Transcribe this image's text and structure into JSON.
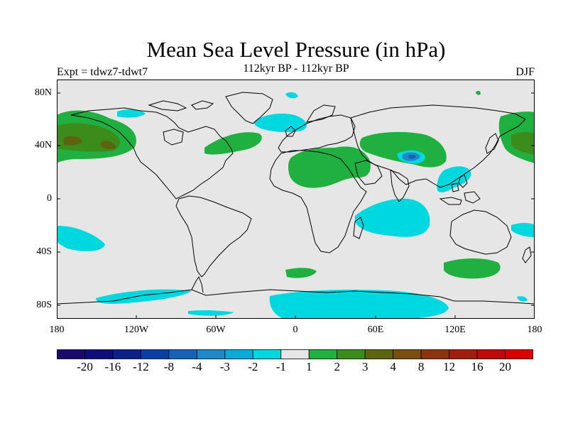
{
  "title": "Mean Sea Level Pressure (in hPa)",
  "subtitle": "112kyr BP - 112kyr BP",
  "experiment": "Expt = tdwz7-tdwt7",
  "season": "DJF",
  "map": {
    "background_color": "#e6e6e6",
    "lat_ticks": [
      "80N",
      "40N",
      "0",
      "40S",
      "80S"
    ],
    "lon_ticks": [
      "180",
      "120W",
      "60W",
      "0",
      "60E",
      "120E",
      "180"
    ]
  },
  "colorbar": {
    "colors": [
      "#1a0a6b",
      "#0e0e78",
      "#0a2288",
      "#0a3ea0",
      "#1563b8",
      "#1f88c8",
      "#0aabd8",
      "#00d8e0",
      "#e6e6e6",
      "#20b040",
      "#3c8c1c",
      "#5c6410",
      "#7a4e10",
      "#8c3410",
      "#a01e0e",
      "#c00a0a",
      "#d80000"
    ],
    "labels": [
      "-20",
      "-16",
      "-12",
      "-8",
      "-4",
      "-3",
      "-2",
      "-1",
      "1",
      "2",
      "3",
      "4",
      "8",
      "12",
      "16",
      "20"
    ]
  },
  "legend": {
    "cyan": "#00d8e0",
    "green": "#20b040",
    "dark_green": "#3c8c1c",
    "olive": "#5c6410",
    "blue": "#1f88c8",
    "deep_blue": "#1563b8"
  }
}
